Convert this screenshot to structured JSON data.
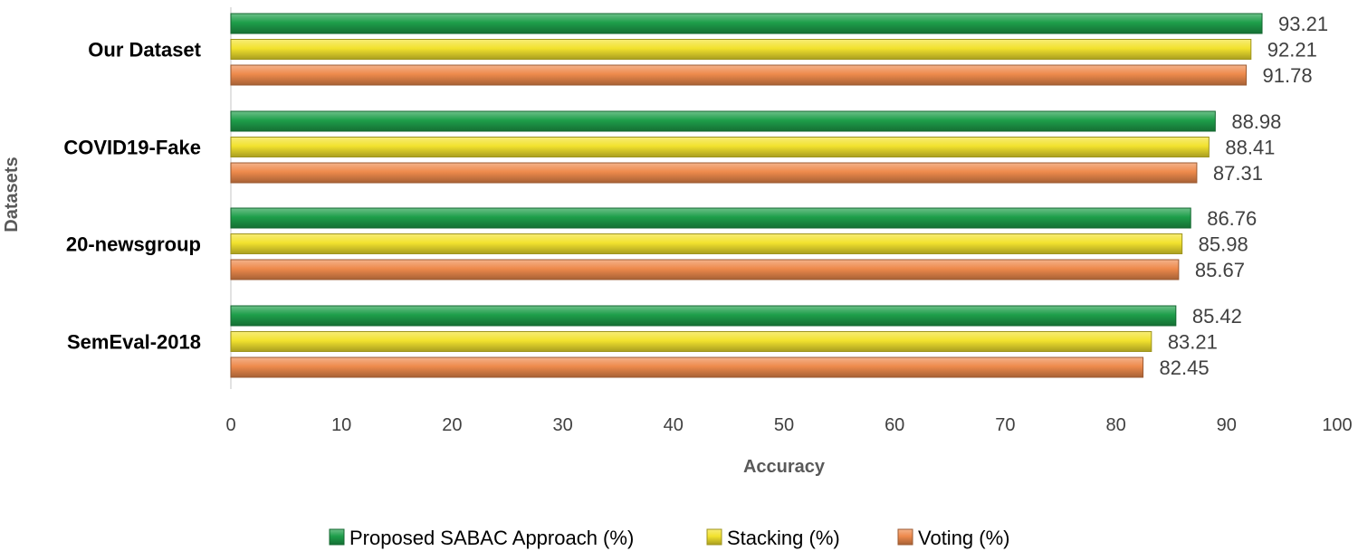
{
  "chart_data": {
    "type": "bar",
    "orientation": "horizontal",
    "title": "",
    "xlabel": "Accuracy",
    "ylabel": "Datasets",
    "xlim": [
      0,
      100
    ],
    "xticks": [
      "0",
      "10",
      "20",
      "30",
      "40",
      "50",
      "60",
      "70",
      "80",
      "90",
      "100"
    ],
    "categories": [
      "Our Dataset",
      "COVID19-Fake",
      "20-newsgroup",
      "SemEval-2018"
    ],
    "series": [
      {
        "name": "Proposed SABAC Approach (%)",
        "color": "#1e9e4a",
        "values": [
          93.21,
          88.98,
          86.76,
          85.42
        ],
        "labels": [
          "93.21",
          "88.98",
          "86.76",
          "85.42"
        ]
      },
      {
        "name": "Stacking (%)",
        "color": "#f2e22e",
        "values": [
          92.21,
          88.41,
          85.98,
          83.21
        ],
        "labels": [
          "92.21",
          "88.41",
          "85.98",
          "83.21"
        ]
      },
      {
        "name": "Voting (%)",
        "color": "#ee8a4c",
        "values": [
          91.78,
          87.31,
          85.67,
          82.45
        ],
        "labels": [
          "91.78",
          "87.31",
          "85.67",
          "82.45"
        ]
      }
    ],
    "grid": false,
    "legend_position": "bottom"
  }
}
